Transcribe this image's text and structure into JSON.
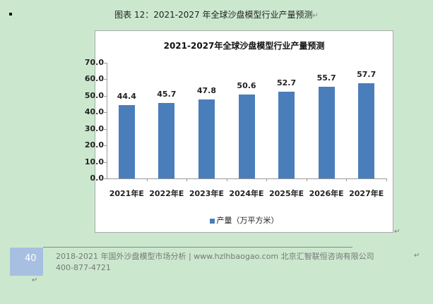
{
  "document": {
    "caption": "图表 12：2021-2027 年全球沙盘模型行业产量预测",
    "return_mark": "↵"
  },
  "chart_data": {
    "type": "bar",
    "title": "2021-2027年全球沙盘模型行业产量预测",
    "categories": [
      "2021年E",
      "2022年E",
      "2023年E",
      "2024年E",
      "2025年E",
      "2026年E",
      "2027年E"
    ],
    "series": [
      {
        "name": "产量（万平方米）",
        "values": [
          44.4,
          45.7,
          47.8,
          50.6,
          52.7,
          55.7,
          57.7
        ],
        "color": "#4a7ebb"
      }
    ],
    "value_labels": [
      "44.4",
      "45.7",
      "47.8",
      "50.6",
      "52.7",
      "55.7",
      "57.7"
    ],
    "xlabel": "",
    "ylabel": "",
    "ylim": [
      0,
      70
    ],
    "yticks": [
      "70.0",
      "60.0",
      "50.0",
      "40.0",
      "30.0",
      "20.0",
      "10.0",
      "0.0"
    ],
    "grid": false,
    "legend_position": "bottom"
  },
  "footer": {
    "page_number": "40",
    "line1": "2018-2021 年国外沙盘模型市场分析 | www.hzlhbaogao.com 北京汇智联恒咨询有限公司",
    "line2": "400-877-4721"
  }
}
